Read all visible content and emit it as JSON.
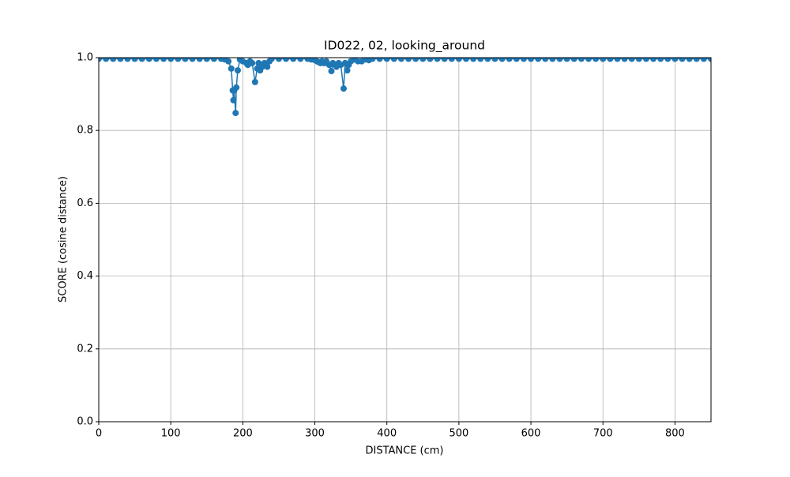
{
  "chart_data": {
    "type": "line",
    "title": "ID022, 02, looking_around",
    "xlabel": "DISTANCE (cm)",
    "ylabel": "SCORE (cosine distance)",
    "x": [
      0,
      10,
      20,
      30,
      40,
      50,
      60,
      70,
      80,
      90,
      100,
      110,
      120,
      130,
      140,
      150,
      160,
      170,
      175,
      180,
      184,
      186,
      187,
      188,
      190,
      191,
      193,
      196,
      200,
      205,
      207,
      210,
      213,
      217,
      220,
      222,
      224,
      227,
      230,
      234,
      237,
      240,
      250,
      260,
      270,
      280,
      290,
      295,
      300,
      303,
      305,
      308,
      310,
      313,
      316,
      320,
      323,
      325,
      328,
      330,
      333,
      336,
      340,
      342,
      345,
      347,
      350,
      355,
      360,
      365,
      370,
      375,
      380,
      390,
      400,
      410,
      420,
      430,
      440,
      450,
      460,
      470,
      480,
      490,
      500,
      510,
      520,
      530,
      540,
      550,
      560,
      570,
      580,
      590,
      600,
      610,
      620,
      630,
      640,
      650,
      660,
      670,
      680,
      690,
      700,
      710,
      720,
      730,
      740,
      750,
      760,
      770,
      780,
      790,
      800,
      810,
      820,
      830,
      840,
      850
    ],
    "series": [
      {
        "name": "score",
        "color": "#1f77b4",
        "values": [
          0.997,
          0.997,
          0.997,
          0.997,
          0.997,
          0.997,
          0.997,
          0.997,
          0.997,
          0.997,
          0.997,
          0.997,
          0.997,
          0.997,
          0.997,
          0.997,
          0.997,
          0.997,
          0.995,
          0.99,
          0.97,
          0.91,
          0.883,
          0.91,
          0.848,
          0.918,
          0.965,
          0.995,
          0.99,
          0.985,
          0.98,
          0.99,
          0.985,
          0.933,
          0.97,
          0.985,
          0.965,
          0.975,
          0.985,
          0.975,
          0.99,
          0.997,
          0.997,
          0.997,
          0.997,
          0.997,
          0.997,
          0.995,
          0.993,
          0.99,
          0.988,
          0.985,
          0.99,
          0.985,
          0.99,
          0.98,
          0.963,
          0.985,
          0.98,
          0.975,
          0.985,
          0.98,
          0.915,
          0.985,
          0.965,
          0.98,
          0.99,
          0.995,
          0.99,
          0.99,
          0.995,
          0.993,
          0.997,
          0.997,
          0.997,
          0.997,
          0.997,
          0.997,
          0.997,
          0.997,
          0.997,
          0.997,
          0.997,
          0.997,
          0.997,
          0.997,
          0.997,
          0.997,
          0.997,
          0.997,
          0.997,
          0.997,
          0.997,
          0.997,
          0.997,
          0.997,
          0.997,
          0.997,
          0.997,
          0.997,
          0.997,
          0.997,
          0.997,
          0.997,
          0.997,
          0.997,
          0.997,
          0.997,
          0.997,
          0.997,
          0.997,
          0.997,
          0.997,
          0.997,
          0.997,
          0.997,
          0.997,
          0.997,
          0.997,
          0.997
        ]
      }
    ],
    "xlim": [
      0,
      850
    ],
    "xticks": [
      0,
      100,
      200,
      300,
      400,
      500,
      600,
      700,
      800
    ],
    "ylim": [
      0,
      1
    ],
    "yticks": [
      {
        "value": 0,
        "label": "0.0"
      },
      0.2,
      0.4,
      0.6,
      0.8,
      {
        "value": 1,
        "label": "1.0"
      }
    ],
    "grid": true
  }
}
